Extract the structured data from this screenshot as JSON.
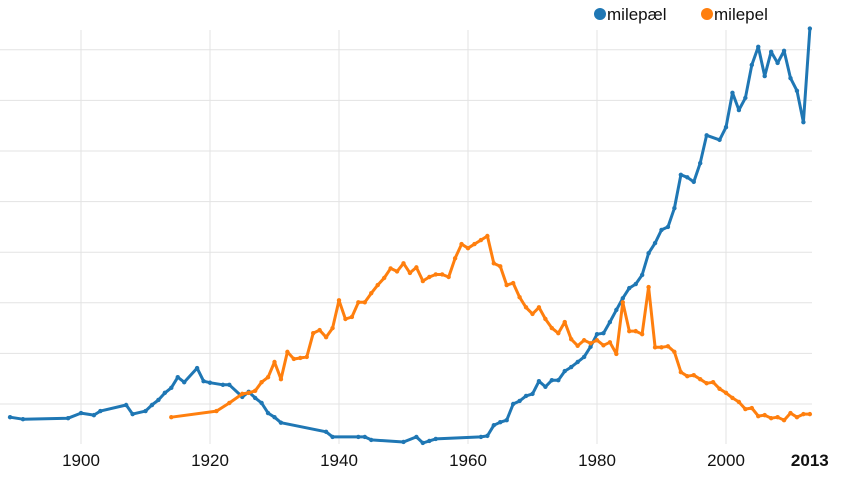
{
  "chart_data": {
    "type": "line",
    "title": "",
    "xlabel": "",
    "ylabel": "",
    "xlim": [
      1887.4,
      2014
    ],
    "ylim": [
      0,
      8.5
    ],
    "grid": true,
    "legend_position": "top-right",
    "x_ticks": [
      "1900",
      "1920",
      "1940",
      "1960",
      "1980",
      "2000"
    ],
    "last_tick": "2013",
    "y_tick_labels_shown": false,
    "series": [
      {
        "name": "milepæl",
        "color": "#1f77b4",
        "points": [
          [
            1889,
            0.74
          ],
          [
            1891,
            0.7
          ],
          [
            1898,
            0.72
          ],
          [
            1900,
            0.82
          ],
          [
            1902,
            0.78
          ],
          [
            1903,
            0.86
          ],
          [
            1907,
            0.98
          ],
          [
            1908,
            0.8
          ],
          [
            1910,
            0.86
          ],
          [
            1911,
            0.98
          ],
          [
            1912,
            1.08
          ],
          [
            1913,
            1.22
          ],
          [
            1914,
            1.32
          ],
          [
            1915,
            1.53
          ],
          [
            1916,
            1.43
          ],
          [
            1918,
            1.71
          ],
          [
            1919,
            1.45
          ],
          [
            1920,
            1.42
          ],
          [
            1922,
            1.38
          ],
          [
            1923,
            1.38
          ],
          [
            1925,
            1.14
          ],
          [
            1926,
            1.24
          ],
          [
            1927,
            1.12
          ],
          [
            1928,
            1.02
          ],
          [
            1929,
            0.82
          ],
          [
            1930,
            0.74
          ],
          [
            1931,
            0.63
          ],
          [
            1938,
            0.45
          ],
          [
            1939,
            0.35
          ],
          [
            1943,
            0.35
          ],
          [
            1944,
            0.35
          ],
          [
            1945,
            0.29
          ],
          [
            1950,
            0.25
          ],
          [
            1952,
            0.35
          ],
          [
            1953,
            0.23
          ],
          [
            1954,
            0.27
          ],
          [
            1955,
            0.31
          ],
          [
            1962,
            0.35
          ],
          [
            1963,
            0.37
          ],
          [
            1964,
            0.58
          ],
          [
            1965,
            0.64
          ],
          [
            1966,
            0.68
          ],
          [
            1967,
            1.0
          ],
          [
            1968,
            1.06
          ],
          [
            1969,
            1.16
          ],
          [
            1970,
            1.2
          ],
          [
            1971,
            1.45
          ],
          [
            1972,
            1.34
          ],
          [
            1973,
            1.47
          ],
          [
            1974,
            1.47
          ],
          [
            1975,
            1.65
          ],
          [
            1976,
            1.73
          ],
          [
            1977,
            1.83
          ],
          [
            1978,
            1.93
          ],
          [
            1979,
            2.13
          ],
          [
            1980,
            2.38
          ],
          [
            1981,
            2.4
          ],
          [
            1982,
            2.62
          ],
          [
            1983,
            2.86
          ],
          [
            1984,
            3.09
          ],
          [
            1985,
            3.29
          ],
          [
            1986,
            3.37
          ],
          [
            1987,
            3.55
          ],
          [
            1988,
            3.98
          ],
          [
            1989,
            4.18
          ],
          [
            1990,
            4.44
          ],
          [
            1991,
            4.5
          ],
          [
            1992,
            4.87
          ],
          [
            1993,
            5.53
          ],
          [
            1994,
            5.48
          ],
          [
            1995,
            5.39
          ],
          [
            1996,
            5.76
          ],
          [
            1997,
            6.31
          ],
          [
            1999,
            6.22
          ],
          [
            2000,
            6.47
          ],
          [
            2001,
            7.15
          ],
          [
            2002,
            6.81
          ],
          [
            2003,
            7.05
          ],
          [
            2004,
            7.7
          ],
          [
            2005,
            8.06
          ],
          [
            2006,
            7.48
          ],
          [
            2007,
            7.96
          ],
          [
            2008,
            7.74
          ],
          [
            2009,
            7.98
          ],
          [
            2010,
            7.44
          ],
          [
            2011,
            7.19
          ],
          [
            2012,
            6.57
          ],
          [
            2013,
            8.42
          ]
        ]
      },
      {
        "name": "milepel",
        "color": "#ff7f0e",
        "points": [
          [
            1914,
            0.74
          ],
          [
            1921,
            0.86
          ],
          [
            1923,
            1.02
          ],
          [
            1925,
            1.2
          ],
          [
            1926,
            1.22
          ],
          [
            1927,
            1.26
          ],
          [
            1928,
            1.43
          ],
          [
            1929,
            1.53
          ],
          [
            1930,
            1.83
          ],
          [
            1931,
            1.49
          ],
          [
            1932,
            2.03
          ],
          [
            1933,
            1.89
          ],
          [
            1934,
            1.91
          ],
          [
            1935,
            1.93
          ],
          [
            1936,
            2.4
          ],
          [
            1937,
            2.46
          ],
          [
            1938,
            2.32
          ],
          [
            1939,
            2.5
          ],
          [
            1940,
            3.05
          ],
          [
            1941,
            2.68
          ],
          [
            1942,
            2.72
          ],
          [
            1943,
            3.01
          ],
          [
            1944,
            3.01
          ],
          [
            1945,
            3.19
          ],
          [
            1946,
            3.35
          ],
          [
            1947,
            3.49
          ],
          [
            1948,
            3.68
          ],
          [
            1949,
            3.62
          ],
          [
            1950,
            3.78
          ],
          [
            1951,
            3.59
          ],
          [
            1952,
            3.7
          ],
          [
            1953,
            3.43
          ],
          [
            1954,
            3.51
          ],
          [
            1955,
            3.56
          ],
          [
            1956,
            3.56
          ],
          [
            1957,
            3.51
          ],
          [
            1958,
            3.88
          ],
          [
            1959,
            4.16
          ],
          [
            1960,
            4.08
          ],
          [
            1961,
            4.16
          ],
          [
            1962,
            4.24
          ],
          [
            1963,
            4.32
          ],
          [
            1964,
            3.78
          ],
          [
            1965,
            3.72
          ],
          [
            1966,
            3.35
          ],
          [
            1967,
            3.39
          ],
          [
            1968,
            3.11
          ],
          [
            1969,
            2.91
          ],
          [
            1970,
            2.78
          ],
          [
            1971,
            2.91
          ],
          [
            1972,
            2.68
          ],
          [
            1973,
            2.5
          ],
          [
            1974,
            2.4
          ],
          [
            1975,
            2.62
          ],
          [
            1976,
            2.28
          ],
          [
            1977,
            2.15
          ],
          [
            1978,
            2.26
          ],
          [
            1979,
            2.2
          ],
          [
            1980,
            2.26
          ],
          [
            1981,
            2.16
          ],
          [
            1982,
            2.22
          ],
          [
            1983,
            1.99
          ],
          [
            1984,
            3.01
          ],
          [
            1985,
            2.44
          ],
          [
            1986,
            2.44
          ],
          [
            1987,
            2.38
          ],
          [
            1988,
            3.31
          ],
          [
            1989,
            2.12
          ],
          [
            1990,
            2.12
          ],
          [
            1991,
            2.14
          ],
          [
            1992,
            2.03
          ],
          [
            1993,
            1.63
          ],
          [
            1994,
            1.55
          ],
          [
            1995,
            1.57
          ],
          [
            1996,
            1.49
          ],
          [
            1997,
            1.41
          ],
          [
            1998,
            1.43
          ],
          [
            1999,
            1.3
          ],
          [
            2000,
            1.22
          ],
          [
            2001,
            1.12
          ],
          [
            2002,
            1.04
          ],
          [
            2003,
            0.9
          ],
          [
            2004,
            0.92
          ],
          [
            2005,
            0.76
          ],
          [
            2006,
            0.78
          ],
          [
            2007,
            0.72
          ],
          [
            2008,
            0.74
          ],
          [
            2009,
            0.68
          ],
          [
            2010,
            0.82
          ],
          [
            2011,
            0.74
          ],
          [
            2012,
            0.8
          ],
          [
            2013,
            0.8
          ]
        ]
      }
    ]
  }
}
